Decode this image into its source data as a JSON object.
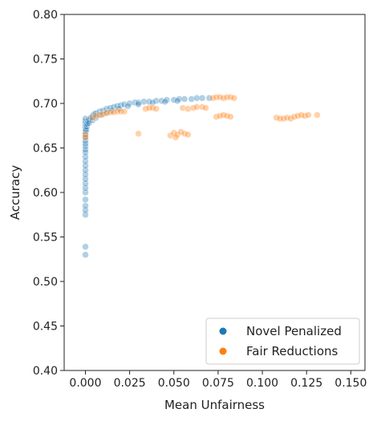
{
  "chart_data": {
    "type": "scatter",
    "xlabel": "Mean Unfairness",
    "ylabel": "Accuracy",
    "xlim": [
      -0.012,
      0.158
    ],
    "ylim": [
      0.4,
      0.8
    ],
    "xticks": [
      "0.000",
      "0.025",
      "0.050",
      "0.075",
      "0.100",
      "0.125",
      "0.150"
    ],
    "yticks": [
      "0.40",
      "0.45",
      "0.50",
      "0.55",
      "0.60",
      "0.65",
      "0.70",
      "0.75",
      "0.80"
    ],
    "grid": false,
    "legend_position": "bottom-right",
    "series": [
      {
        "name": "Novel Penalized",
        "color": "#1f77b4",
        "points": [
          [
            0.0,
            0.53
          ],
          [
            0.0,
            0.539
          ],
          [
            0.0,
            0.575
          ],
          [
            0.0,
            0.58
          ],
          [
            0.0,
            0.585
          ],
          [
            0.0,
            0.592
          ],
          [
            0.0,
            0.6
          ],
          [
            0.0,
            0.605
          ],
          [
            0.0,
            0.61
          ],
          [
            0.0,
            0.615
          ],
          [
            0.0,
            0.62
          ],
          [
            0.0,
            0.625
          ],
          [
            0.0,
            0.63
          ],
          [
            0.0,
            0.635
          ],
          [
            0.0,
            0.64
          ],
          [
            0.0,
            0.645
          ],
          [
            0.0,
            0.648
          ],
          [
            0.0,
            0.652
          ],
          [
            0.0,
            0.655
          ],
          [
            0.0,
            0.658
          ],
          [
            0.0,
            0.662
          ],
          [
            0.0,
            0.665
          ],
          [
            0.0,
            0.668
          ],
          [
            0.0,
            0.671
          ],
          [
            0.0,
            0.674
          ],
          [
            0.0,
            0.677
          ],
          [
            0.0,
            0.68
          ],
          [
            0.0,
            0.683
          ],
          [
            0.0005,
            0.67
          ],
          [
            0.0008,
            0.674
          ],
          [
            0.001,
            0.677
          ],
          [
            0.0015,
            0.68
          ],
          [
            0.002,
            0.682
          ],
          [
            0.003,
            0.684
          ],
          [
            0.004,
            0.686
          ],
          [
            0.005,
            0.688
          ],
          [
            0.006,
            0.689
          ],
          [
            0.008,
            0.691
          ],
          [
            0.01,
            0.692
          ],
          [
            0.012,
            0.694
          ],
          [
            0.014,
            0.695
          ],
          [
            0.016,
            0.696
          ],
          [
            0.018,
            0.697
          ],
          [
            0.02,
            0.698
          ],
          [
            0.022,
            0.699
          ],
          [
            0.025,
            0.7
          ],
          [
            0.028,
            0.701
          ],
          [
            0.03,
            0.701
          ],
          [
            0.033,
            0.702
          ],
          [
            0.036,
            0.702
          ],
          [
            0.04,
            0.703
          ],
          [
            0.043,
            0.703
          ],
          [
            0.046,
            0.704
          ],
          [
            0.05,
            0.704
          ],
          [
            0.053,
            0.705
          ],
          [
            0.056,
            0.705
          ],
          [
            0.06,
            0.705
          ],
          [
            0.063,
            0.706
          ],
          [
            0.066,
            0.706
          ],
          [
            0.07,
            0.706
          ],
          [
            0.002,
            0.678
          ],
          [
            0.004,
            0.681
          ],
          [
            0.006,
            0.684
          ],
          [
            0.009,
            0.687
          ],
          [
            0.012,
            0.69
          ],
          [
            0.015,
            0.692
          ],
          [
            0.019,
            0.694
          ],
          [
            0.024,
            0.697
          ],
          [
            0.03,
            0.699
          ],
          [
            0.038,
            0.701
          ],
          [
            0.045,
            0.702
          ],
          [
            0.052,
            0.703
          ]
        ]
      },
      {
        "name": "Fair Reductions",
        "color": "#ff7f0e",
        "points": [
          [
            0.0,
            0.665
          ],
          [
            0.0,
            0.662
          ],
          [
            0.004,
            0.684
          ],
          [
            0.006,
            0.686
          ],
          [
            0.008,
            0.687
          ],
          [
            0.01,
            0.688
          ],
          [
            0.012,
            0.689
          ],
          [
            0.014,
            0.69
          ],
          [
            0.016,
            0.69
          ],
          [
            0.018,
            0.691
          ],
          [
            0.02,
            0.691
          ],
          [
            0.022,
            0.691
          ],
          [
            0.034,
            0.694
          ],
          [
            0.036,
            0.695
          ],
          [
            0.038,
            0.695
          ],
          [
            0.04,
            0.694
          ],
          [
            0.03,
            0.666
          ],
          [
            0.048,
            0.664
          ],
          [
            0.05,
            0.667
          ],
          [
            0.052,
            0.665
          ],
          [
            0.054,
            0.668
          ],
          [
            0.056,
            0.666
          ],
          [
            0.058,
            0.665
          ],
          [
            0.051,
            0.662
          ],
          [
            0.055,
            0.695
          ],
          [
            0.058,
            0.694
          ],
          [
            0.061,
            0.695
          ],
          [
            0.063,
            0.696
          ],
          [
            0.066,
            0.696
          ],
          [
            0.068,
            0.695
          ],
          [
            0.072,
            0.706
          ],
          [
            0.074,
            0.707
          ],
          [
            0.076,
            0.707
          ],
          [
            0.078,
            0.706
          ],
          [
            0.08,
            0.707
          ],
          [
            0.082,
            0.707
          ],
          [
            0.084,
            0.706
          ],
          [
            0.074,
            0.685
          ],
          [
            0.076,
            0.686
          ],
          [
            0.078,
            0.687
          ],
          [
            0.08,
            0.686
          ],
          [
            0.082,
            0.685
          ],
          [
            0.108,
            0.684
          ],
          [
            0.11,
            0.683
          ],
          [
            0.112,
            0.683
          ],
          [
            0.114,
            0.684
          ],
          [
            0.116,
            0.683
          ],
          [
            0.118,
            0.685
          ],
          [
            0.12,
            0.686
          ],
          [
            0.122,
            0.687
          ],
          [
            0.124,
            0.686
          ],
          [
            0.126,
            0.687
          ],
          [
            0.131,
            0.687
          ]
        ]
      }
    ]
  }
}
